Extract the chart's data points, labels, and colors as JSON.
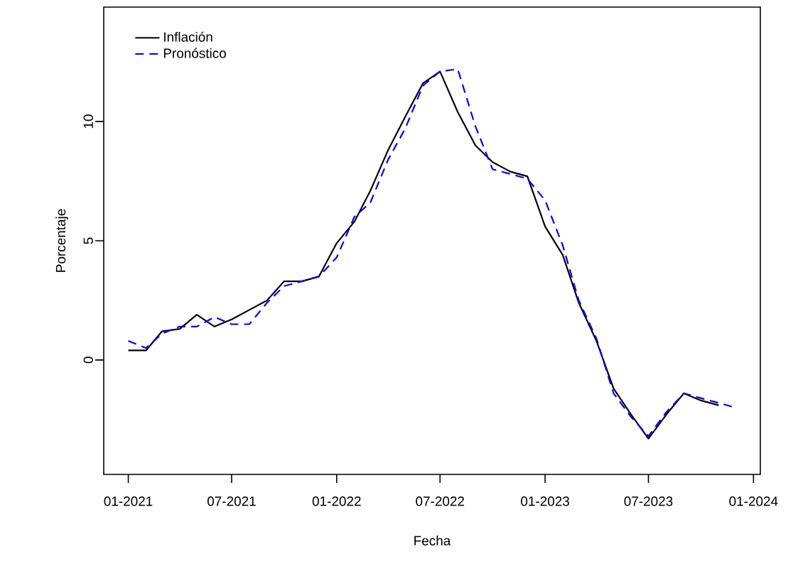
{
  "chart_data": {
    "type": "line",
    "xlabel": "Fecha",
    "ylabel": "Porcentaje",
    "x": [
      "2021-01",
      "2021-02",
      "2021-03",
      "2021-04",
      "2021-05",
      "2021-06",
      "2021-07",
      "2021-08",
      "2021-09",
      "2021-10",
      "2021-11",
      "2021-12",
      "2022-01",
      "2022-02",
      "2022-03",
      "2022-04",
      "2022-05",
      "2022-06",
      "2022-07",
      "2022-08",
      "2022-09",
      "2022-10",
      "2022-11",
      "2022-12",
      "2023-01",
      "2023-02",
      "2023-03",
      "2023-04",
      "2023-05",
      "2023-06",
      "2023-07",
      "2023-08",
      "2023-09",
      "2023-10",
      "2023-11",
      "2023-12"
    ],
    "series": [
      {
        "name": "Inflación",
        "color": "#000000",
        "line_style": "solid",
        "values": [
          0.4,
          0.4,
          1.2,
          1.3,
          1.9,
          1.4,
          1.7,
          2.1,
          2.5,
          3.3,
          3.3,
          3.5,
          4.9,
          5.8,
          7.1,
          8.8,
          10.2,
          11.6,
          12.1,
          10.4,
          9.0,
          8.3,
          7.9,
          7.7,
          5.6,
          4.4,
          2.4,
          0.8,
          -1.2,
          -2.3,
          -3.3,
          -2.3,
          -1.4,
          -1.7,
          -1.9,
          null
        ]
      },
      {
        "name": "Pronóstico",
        "color": "#0000ff",
        "line_style": "dashed",
        "values": [
          0.8,
          0.5,
          1.1,
          1.4,
          1.4,
          1.8,
          1.5,
          1.5,
          2.4,
          3.1,
          3.3,
          3.5,
          4.3,
          6.0,
          6.6,
          8.4,
          9.7,
          11.5,
          12.1,
          12.2,
          9.8,
          8.0,
          7.8,
          7.6,
          6.7,
          4.8,
          2.5,
          0.9,
          -1.4,
          -2.4,
          -3.2,
          -2.2,
          -1.4,
          -1.6,
          -1.8,
          -2.0
        ]
      }
    ],
    "xlim": [
      "2020-11-19",
      "2024-01-13"
    ],
    "ylim": [
      -4.8,
      14.8
    ],
    "xticks": [
      {
        "value": "2021-01",
        "label": "01-2021"
      },
      {
        "value": "2021-07",
        "label": "07-2021"
      },
      {
        "value": "2022-01",
        "label": "01-2022"
      },
      {
        "value": "2022-07",
        "label": "07-2022"
      },
      {
        "value": "2023-01",
        "label": "01-2023"
      },
      {
        "value": "2023-07",
        "label": "07-2023"
      },
      {
        "value": "2024-01",
        "label": "01-2024"
      }
    ],
    "yticks": [
      0,
      5,
      10
    ],
    "legend": "top left",
    "grid": false
  }
}
